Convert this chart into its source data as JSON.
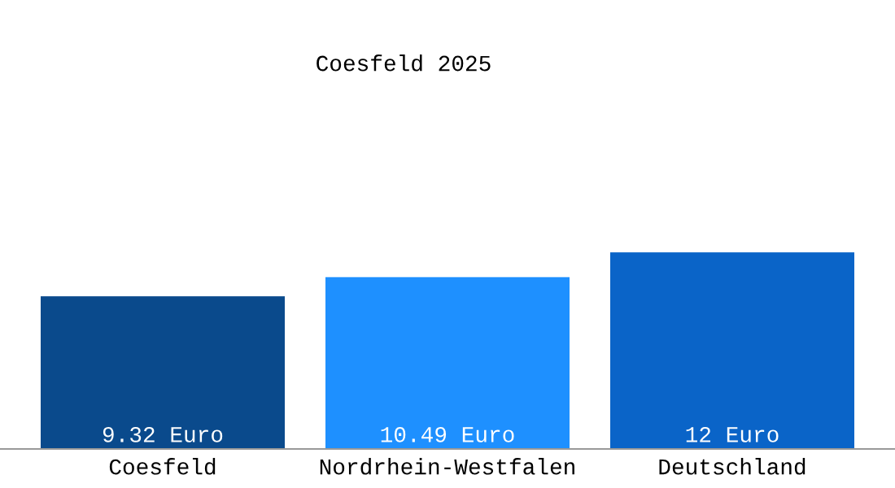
{
  "chart_data": {
    "type": "bar",
    "title": "Coesfeld 2025",
    "categories": [
      "Coesfeld",
      "Nordrhein-Westfalen",
      "Deutschland"
    ],
    "values": [
      9.32,
      10.49,
      12
    ],
    "colors": [
      "#0a4a8c",
      "#1e90ff",
      "#0a64c8"
    ],
    "value_labels": [
      "9.32 Euro",
      "10.49 Euro",
      "12 Euro"
    ],
    "grid": false,
    "legend": false
  }
}
